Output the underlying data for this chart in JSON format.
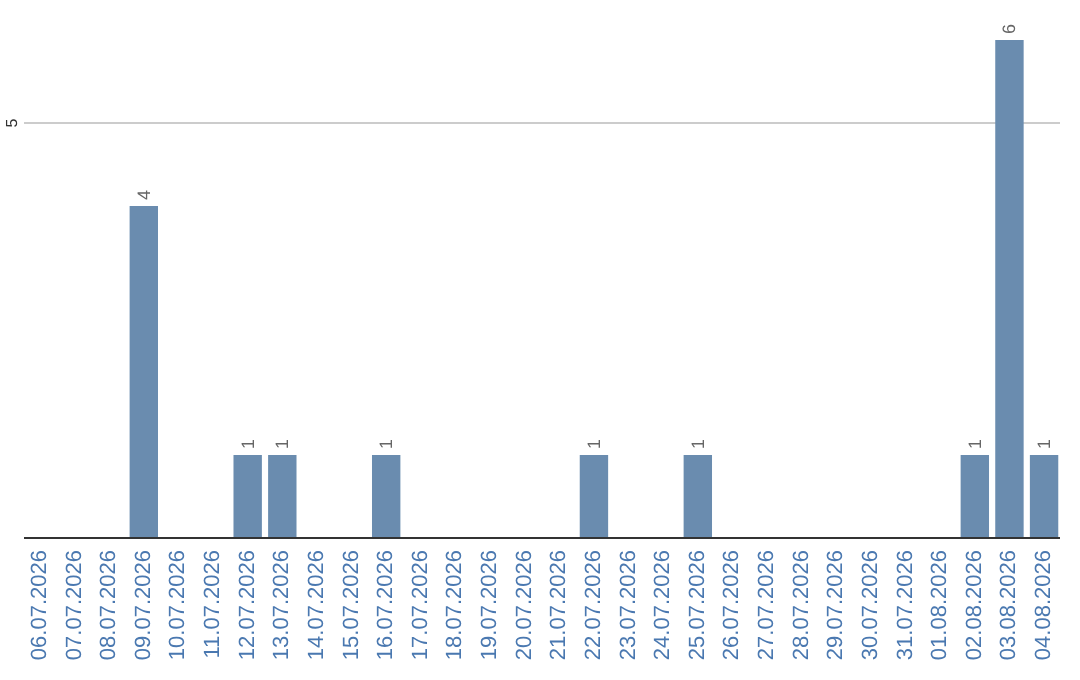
{
  "chart_data": {
    "type": "bar",
    "categories": [
      "06.07.2026",
      "07.07.2026",
      "08.07.2026",
      "09.07.2026",
      "10.07.2026",
      "11.07.2026",
      "12.07.2026",
      "13.07.2026",
      "14.07.2026",
      "15.07.2026",
      "16.07.2026",
      "17.07.2026",
      "18.07.2026",
      "19.07.2026",
      "20.07.2026",
      "21.07.2026",
      "22.07.2026",
      "23.07.2026",
      "24.07.2026",
      "25.07.2026",
      "26.07.2026",
      "27.07.2026",
      "28.07.2026",
      "29.07.2026",
      "30.07.2026",
      "31.07.2026",
      "01.08.2026",
      "02.08.2026",
      "03.08.2026",
      "04.08.2026"
    ],
    "values": [
      0,
      0,
      0,
      4,
      0,
      0,
      1,
      1,
      0,
      0,
      1,
      0,
      0,
      0,
      0,
      0,
      1,
      0,
      0,
      1,
      0,
      0,
      0,
      0,
      0,
      0,
      0,
      1,
      6,
      1
    ],
    "value_labels": [
      null,
      null,
      null,
      "4",
      null,
      null,
      "1",
      "1",
      null,
      null,
      "1",
      null,
      null,
      null,
      null,
      null,
      "1",
      null,
      null,
      "1",
      null,
      null,
      null,
      null,
      null,
      null,
      null,
      "1",
      "6",
      "1"
    ],
    "color": "#6a8caf",
    "ylim": [
      0,
      6
    ],
    "yticks": [
      5
    ],
    "grid": "y"
  }
}
